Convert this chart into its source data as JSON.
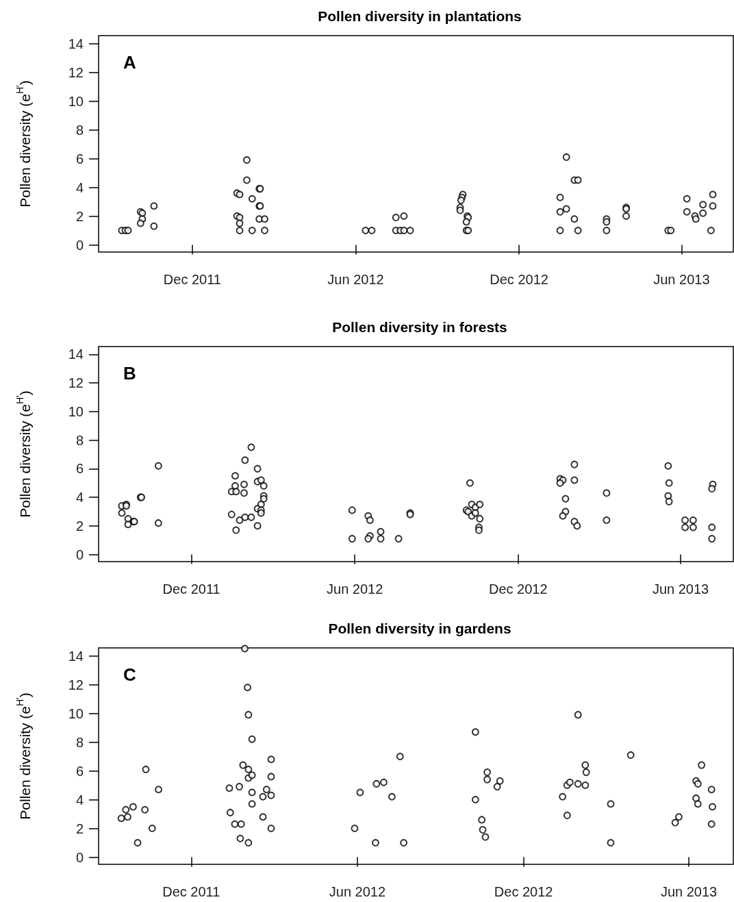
{
  "chart_data": [
    {
      "type": "scatter",
      "title": "Pollen diversity in plantations",
      "ylabel": "Pollen diversity (e$^{H'}$)",
      "annotations": [
        "A"
      ],
      "marker": "circle",
      "color": "#000000",
      "x": [
        "2011-09-13",
        "2011-09-17",
        "2011-09-20",
        "2011-10-04",
        "2011-10-06",
        "2011-10-06",
        "2011-10-04",
        "2011-10-19",
        "2011-10-19",
        "2012-01-20",
        "2012-01-23",
        "2012-01-20",
        "2012-01-23",
        "2012-01-23",
        "2012-01-23",
        "2012-01-31",
        "2012-01-31",
        "2012-02-06",
        "2012-02-06",
        "2012-02-14",
        "2012-02-15",
        "2012-02-14",
        "2012-02-15",
        "2012-02-14",
        "2012-02-20",
        "2012-02-20",
        "2012-06-12",
        "2012-06-19",
        "2012-07-16",
        "2012-07-25",
        "2012-07-16",
        "2012-07-21",
        "2012-07-25",
        "2012-08-01",
        "2012-09-29",
        "2012-09-28",
        "2012-09-27",
        "2012-09-26",
        "2012-09-26",
        "2012-10-04",
        "2012-10-05",
        "2012-10-03",
        "2012-10-03",
        "2012-10-05",
        "2013-01-16",
        "2013-01-16",
        "2013-01-23",
        "2013-01-23",
        "2013-02-01",
        "2013-02-01",
        "2013-02-05",
        "2013-01-16",
        "2013-02-05",
        "2013-03-09",
        "2013-03-09",
        "2013-03-09",
        "2013-03-31",
        "2013-03-31",
        "2013-03-31",
        "2013-05-17",
        "2013-05-20",
        "2013-06-07",
        "2013-06-07",
        "2013-06-16",
        "2013-06-17",
        "2013-06-25",
        "2013-06-25",
        "2013-07-06",
        "2013-07-06",
        "2013-07-04"
      ],
      "values": [
        1,
        1,
        1,
        2.3,
        2.2,
        1.8,
        1.5,
        2.7,
        1.3,
        3.6,
        3.5,
        2,
        1.9,
        1.5,
        1,
        5.9,
        4.5,
        3.2,
        1,
        3.9,
        3.9,
        2.7,
        2.7,
        1.8,
        1.8,
        1,
        1,
        1,
        1.9,
        2,
        1,
        1,
        1,
        1,
        3.5,
        3.3,
        3.1,
        2.6,
        2.4,
        2,
        1.9,
        1.6,
        1,
        1,
        3.3,
        2.3,
        2.5,
        6.1,
        1.8,
        4.5,
        4.5,
        1,
        1,
        1.8,
        1.6,
        1,
        2.6,
        2.5,
        2,
        1,
        1,
        3.2,
        2.3,
        2,
        1.8,
        2.8,
        2.2,
        3.5,
        2.7,
        1
      ],
      "xlim": [
        "2011-08-18",
        "2013-07-29"
      ],
      "xticks": [
        {
          "value": "2011-12-01",
          "label": "Dec 2011"
        },
        {
          "value": "2012-06-01",
          "label": "Jun 2012"
        },
        {
          "value": "2012-12-01",
          "label": "Dec 2012"
        },
        {
          "value": "2013-06-01",
          "label": "Jun 2013"
        }
      ],
      "ylim": [
        -0.5,
        14.55
      ],
      "yticks": [
        0,
        2,
        4,
        6,
        8,
        10,
        12,
        14
      ]
    },
    {
      "type": "scatter",
      "title": "Pollen diversity in forests",
      "ylabel": "Pollen diversity (e$^{H'}$)",
      "annotations": [
        "B"
      ],
      "marker": "circle",
      "color": "#000000",
      "x": [
        "2011-09-14",
        "2011-09-19",
        "2011-09-19",
        "2011-09-14",
        "2011-09-21",
        "2011-09-21",
        "2011-09-27",
        "2011-09-28",
        "2011-10-05",
        "2011-10-06",
        "2011-10-25",
        "2011-10-25",
        "2012-01-15",
        "2012-01-19",
        "2012-01-19",
        "2012-01-20",
        "2012-01-15",
        "2012-01-20",
        "2012-01-24",
        "2012-01-29",
        "2012-01-29",
        "2012-01-30",
        "2012-01-30",
        "2012-02-06",
        "2012-02-06",
        "2012-02-13",
        "2012-02-13",
        "2012-02-17",
        "2012-02-20",
        "2012-02-20",
        "2012-02-20",
        "2012-02-17",
        "2012-02-13",
        "2012-02-17",
        "2012-02-17",
        "2012-02-13",
        "2012-05-29",
        "2012-05-29",
        "2012-06-16",
        "2012-06-18",
        "2012-06-18",
        "2012-06-16",
        "2012-06-30",
        "2012-06-30",
        "2012-07-20",
        "2012-08-02",
        "2012-08-02",
        "2012-10-08",
        "2012-10-04",
        "2012-10-06",
        "2012-10-10",
        "2012-10-10",
        "2012-10-14",
        "2012-10-14",
        "2012-10-19",
        "2012-10-19",
        "2012-10-18",
        "2012-10-18",
        "2013-01-17",
        "2013-01-20",
        "2013-01-17",
        "2013-02-02",
        "2013-02-02",
        "2013-01-23",
        "2013-01-23",
        "2013-01-20",
        "2013-02-02",
        "2013-02-05",
        "2013-03-10",
        "2013-03-10",
        "2013-05-18",
        "2013-05-19",
        "2013-05-18",
        "2013-05-19",
        "2013-06-06",
        "2013-06-15",
        "2013-06-06",
        "2013-06-15",
        "2013-07-07",
        "2013-07-06",
        "2013-07-06",
        "2013-07-06"
      ],
      "values": [
        3.4,
        3.5,
        3.4,
        2.9,
        2.5,
        2.1,
        2.3,
        2.3,
        4,
        4,
        6.2,
        2.2,
        4.4,
        5.5,
        4.8,
        4.4,
        2.8,
        1.7,
        2.4,
        4.9,
        4.3,
        2.6,
        6.6,
        7.5,
        2.6,
        6,
        5.1,
        5.2,
        4.8,
        4.1,
        3.9,
        3.5,
        3.2,
        3.1,
        2.9,
        2,
        3.1,
        1.1,
        2.7,
        2.4,
        1.3,
        1.1,
        1.6,
        1.1,
        1.1,
        2.9,
        2.8,
        5,
        3.1,
        3,
        3.5,
        2.7,
        3.3,
        2.9,
        3.5,
        2.5,
        1.9,
        1.7,
        5.3,
        5.2,
        5,
        6.3,
        5.2,
        3.9,
        3,
        2.7,
        2.3,
        2,
        4.3,
        2.4,
        6.2,
        5,
        4.1,
        3.7,
        2.4,
        2.4,
        1.9,
        1.9,
        4.9,
        4.6,
        1.9,
        1.1
      ],
      "xlim": [
        "2011-08-19",
        "2013-07-30"
      ],
      "xticks": [
        {
          "value": "2011-12-01",
          "label": "Dec 2011"
        },
        {
          "value": "2012-06-01",
          "label": "Jun 2012"
        },
        {
          "value": "2012-12-01",
          "label": "Dec 2012"
        },
        {
          "value": "2013-06-01",
          "label": "Jun 2013"
        }
      ],
      "ylim": [
        -0.5,
        14.55
      ],
      "yticks": [
        0,
        2,
        4,
        6,
        8,
        10,
        12,
        14
      ]
    },
    {
      "type": "scatter",
      "title": "Pollen diversity in gardens",
      "ylabel": "Pollen diversity (e$^{H'}$)",
      "annotations": [
        "C"
      ],
      "marker": "circle",
      "color": "#000000",
      "x": [
        "2011-09-15",
        "2011-09-20",
        "2011-09-22",
        "2011-09-28",
        "2011-10-03",
        "2011-10-12",
        "2011-10-11",
        "2011-10-19",
        "2011-10-26",
        "2012-01-12",
        "2012-01-13",
        "2012-01-18",
        "2012-01-23",
        "2012-01-25",
        "2012-01-24",
        "2012-01-27",
        "2012-01-29",
        "2012-02-01",
        "2012-02-02",
        "2012-02-02",
        "2012-02-02",
        "2012-02-02",
        "2012-02-06",
        "2012-02-06",
        "2012-02-06",
        "2012-02-06",
        "2012-02-18",
        "2012-02-18",
        "2012-02-22",
        "2012-02-27",
        "2012-02-27",
        "2012-02-27",
        "2012-02-27",
        "2012-05-29",
        "2012-06-04",
        "2012-06-21",
        "2012-06-22",
        "2012-06-30",
        "2012-07-09",
        "2012-07-18",
        "2012-07-22",
        "2012-10-09",
        "2012-10-09",
        "2012-10-16",
        "2012-10-17",
        "2012-10-20",
        "2012-10-22",
        "2012-10-22",
        "2012-11-02",
        "2012-11-05",
        "2013-01-13",
        "2013-01-18",
        "2013-01-18",
        "2013-01-21",
        "2013-01-30",
        "2013-01-30",
        "2013-02-07",
        "2013-02-08",
        "2013-02-07",
        "2013-03-07",
        "2013-03-07",
        "2013-03-29",
        "2013-05-17",
        "2013-05-21",
        "2013-06-09",
        "2013-06-11",
        "2013-06-09",
        "2013-06-11",
        "2013-06-15",
        "2013-06-26",
        "2013-06-27",
        "2013-06-26"
      ],
      "values": [
        2.7,
        3.3,
        2.8,
        3.5,
        1,
        6.1,
        3.3,
        2,
        4.7,
        4.8,
        3.1,
        2.3,
        4.9,
        2.3,
        1.3,
        6.4,
        14.5,
        11.8,
        9.9,
        6.1,
        5.5,
        1,
        5.7,
        4.5,
        3.7,
        8.2,
        4.2,
        2.8,
        4.7,
        6.8,
        5.6,
        4.3,
        2,
        2,
        4.5,
        1,
        5.1,
        5.2,
        4.2,
        7,
        1,
        8.7,
        4,
        2.6,
        1.9,
        1.4,
        5.9,
        5.4,
        4.9,
        5.3,
        4.2,
        2.9,
        5,
        5.2,
        9.9,
        5.1,
        6.4,
        5.9,
        5,
        3.7,
        1,
        7.1,
        2.4,
        2.8,
        5.3,
        5.1,
        4.1,
        3.7,
        6.4,
        4.7,
        3.5,
        2.3
      ],
      "xlim": [
        "2011-08-21",
        "2013-07-20"
      ],
      "xticks": [
        {
          "value": "2011-12-01",
          "label": "Dec 2011"
        },
        {
          "value": "2012-06-01",
          "label": "Jun 2012"
        },
        {
          "value": "2012-12-01",
          "label": "Dec 2012"
        },
        {
          "value": "2013-06-01",
          "label": "Jun 2013"
        }
      ],
      "ylim": [
        -0.5,
        14.55
      ],
      "yticks": [
        0,
        2,
        4,
        6,
        8,
        10,
        12,
        14
      ]
    }
  ]
}
